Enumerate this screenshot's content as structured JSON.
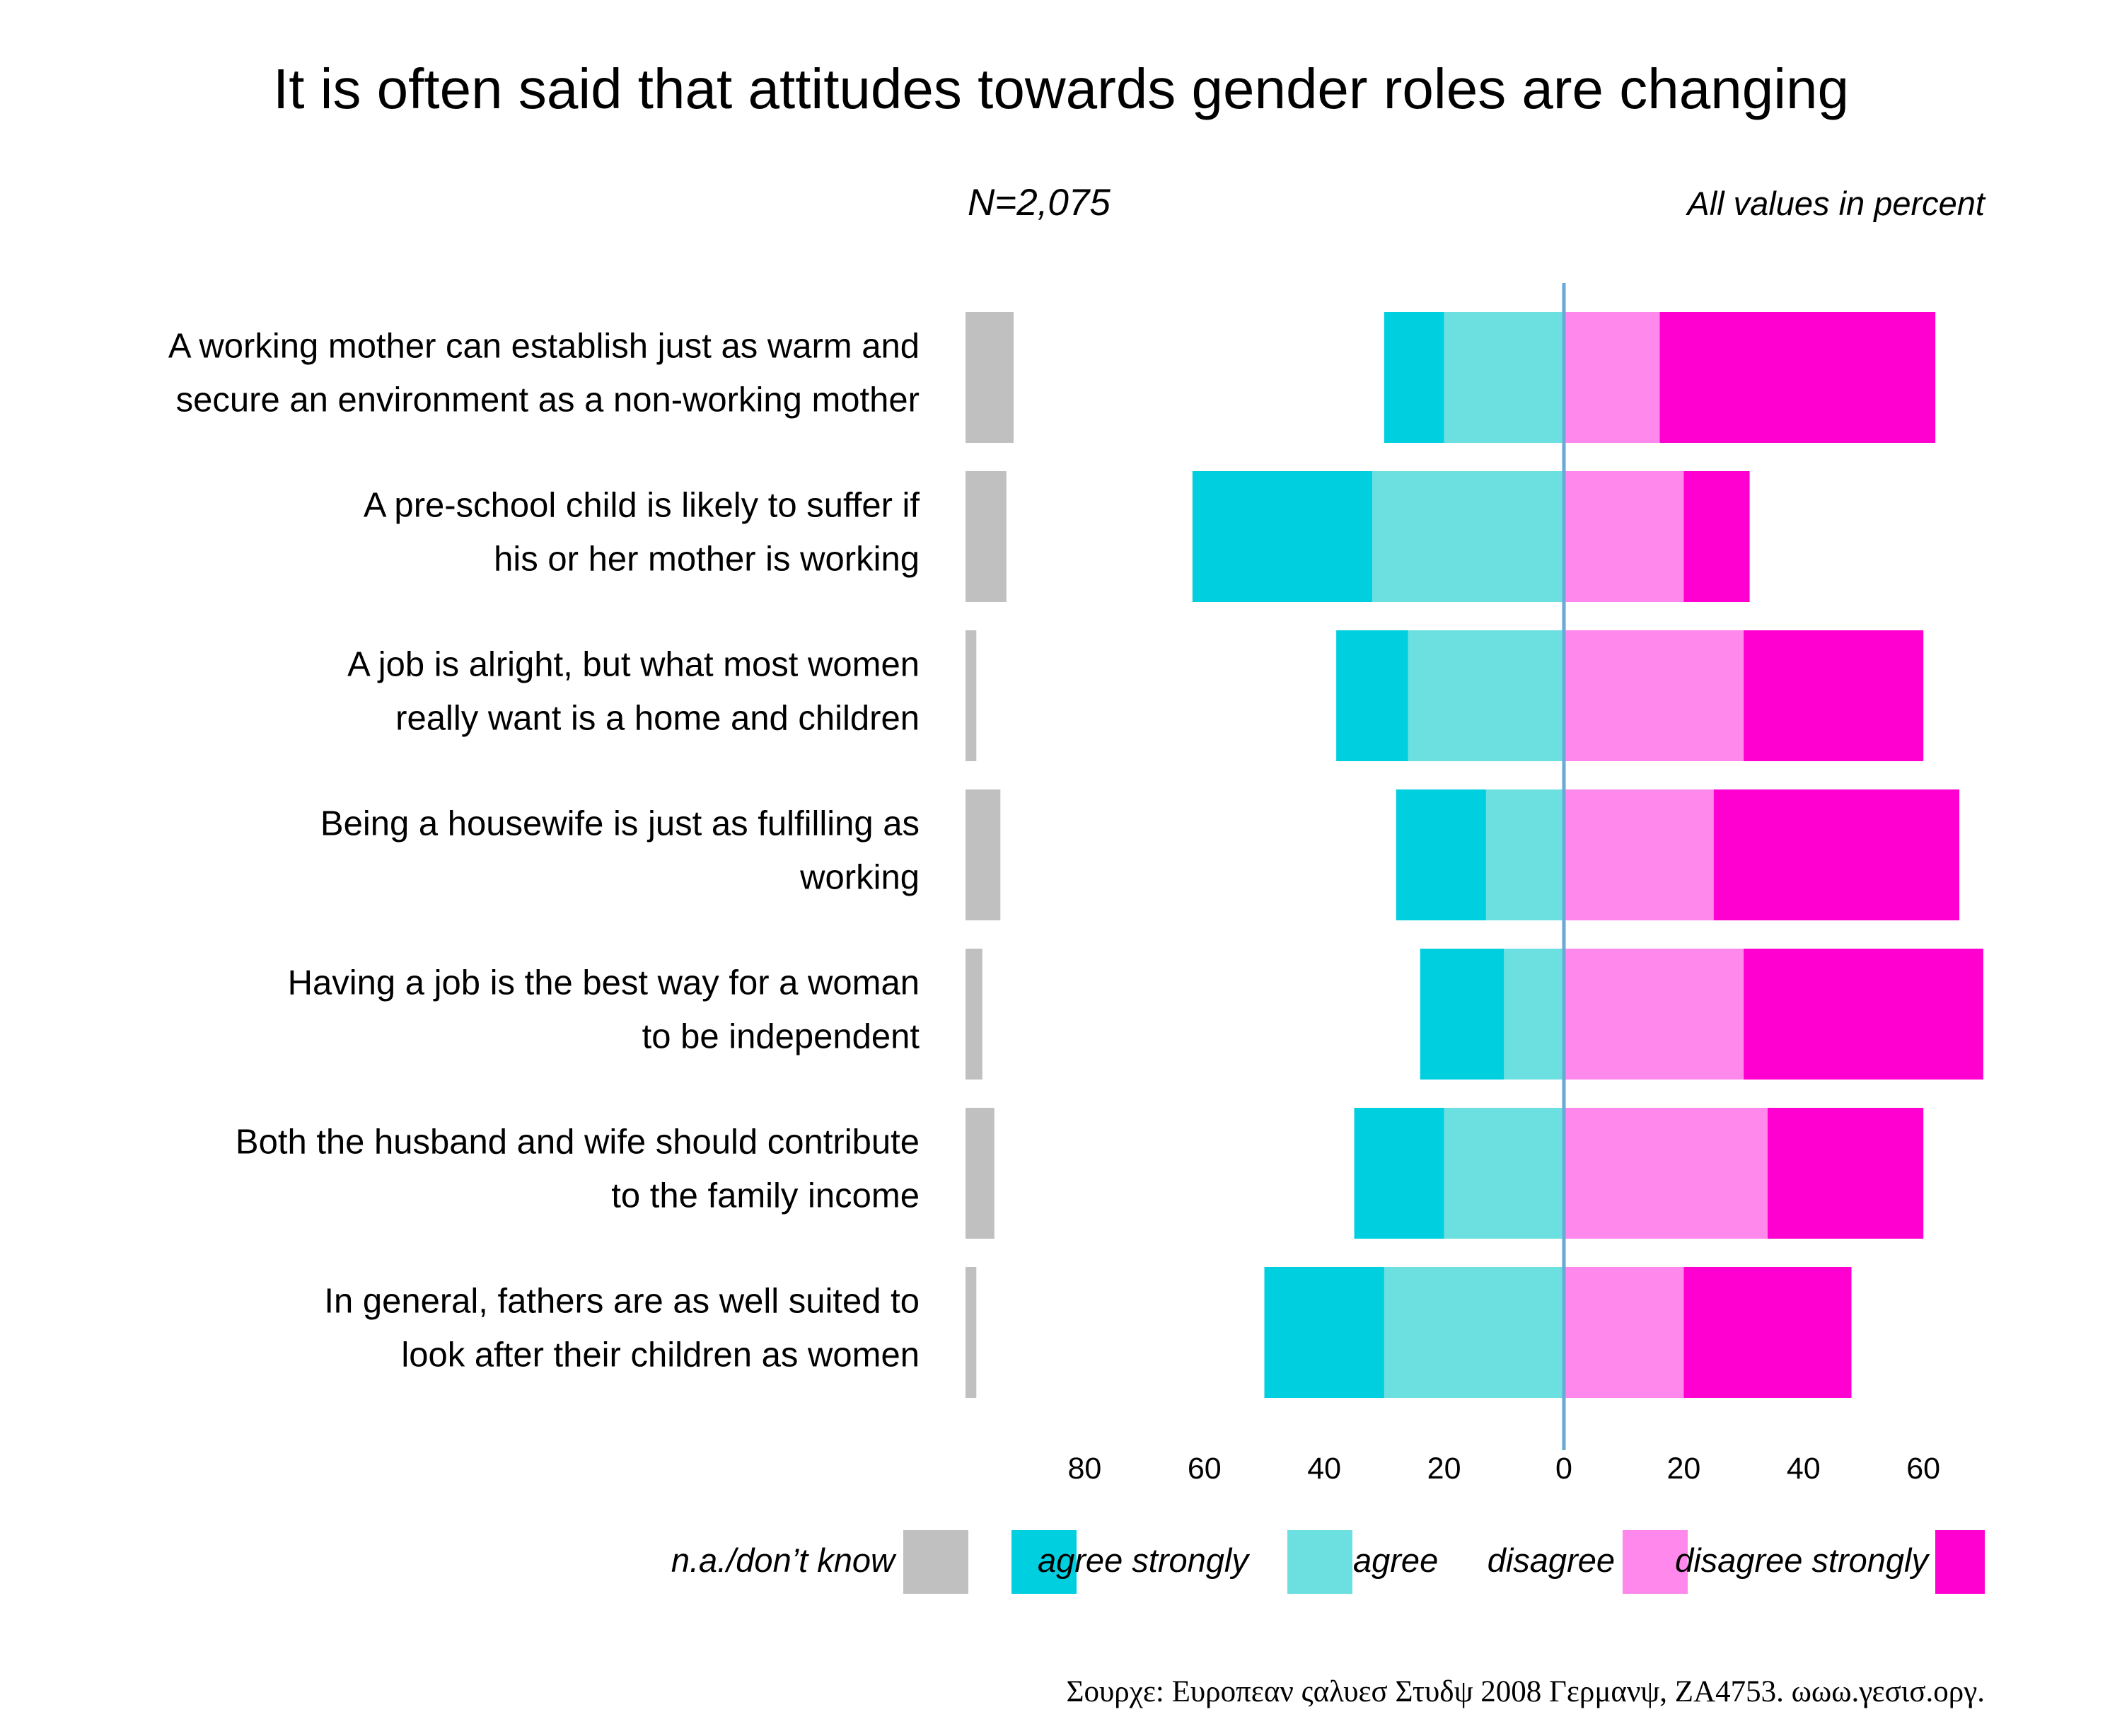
{
  "chart_data": {
    "type": "bar",
    "title": "It is often said that attitudes towards gender roles are changing",
    "note_left": "N=2,075",
    "note_right": "All values in percent",
    "categories": [
      [
        "A working mother can establish just as warm and",
        "secure an environment as a non-working mother"
      ],
      [
        "A pre-school child is likely to suffer if",
        "his or her mother is working"
      ],
      [
        "A job is alright, but what most women",
        "really want is a home and children"
      ],
      [
        "Being a housewife is just as fulfilling as",
        "working"
      ],
      [
        "Having a job is the best way for a woman",
        "to be independent"
      ],
      [
        "Both the husband and wife should contribute",
        "to the family income"
      ],
      [
        "In general, fathers are as well suited to",
        "look after their children as women"
      ]
    ],
    "series": [
      {
        "name": "n.a./don’t know",
        "color": "#c0c0c0",
        "values": [
          4.0,
          3.4,
          0.9,
          2.9,
          1.4,
          2.4,
          0.9
        ]
      },
      {
        "name": "agree strongly",
        "color": "#00cfe0",
        "values": [
          10,
          30,
          12,
          15,
          14,
          15,
          20
        ]
      },
      {
        "name": "agree",
        "color": "#6cdfe1",
        "values": [
          20,
          32,
          26,
          13,
          10,
          20,
          30
        ]
      },
      {
        "name": "disagree",
        "color": "#ff88ec",
        "values": [
          16,
          20,
          30,
          25,
          30,
          34,
          20
        ]
      },
      {
        "name": "disagree strongly",
        "color": "#ff00d0",
        "values": [
          46,
          11,
          30,
          41,
          40,
          26,
          28
        ]
      }
    ],
    "x_ticks_left": [
      80,
      60,
      40,
      20,
      0
    ],
    "x_ticks_right": [
      20,
      40,
      60
    ],
    "center_line_color": "#6aaad6",
    "xlabel": "",
    "ylabel": ""
  },
  "legend": {
    "items": [
      {
        "label": "n.a./don’t know",
        "color": "#c0c0c0"
      },
      {
        "label": "agree strongly",
        "color": "#00cfe0"
      },
      {
        "label": "agree",
        "color": "#6cdfe1"
      },
      {
        "label": "disagree",
        "color": "#ff88ec"
      },
      {
        "label": "disagree strongly",
        "color": "#ff00d0"
      }
    ]
  },
  "source": "Σουρχε: Ευροπεαν ςαλυεσ Στυδψ 2008 Γερμανψ, ΖΑ4753. ωωω.γεσισ.οργ."
}
